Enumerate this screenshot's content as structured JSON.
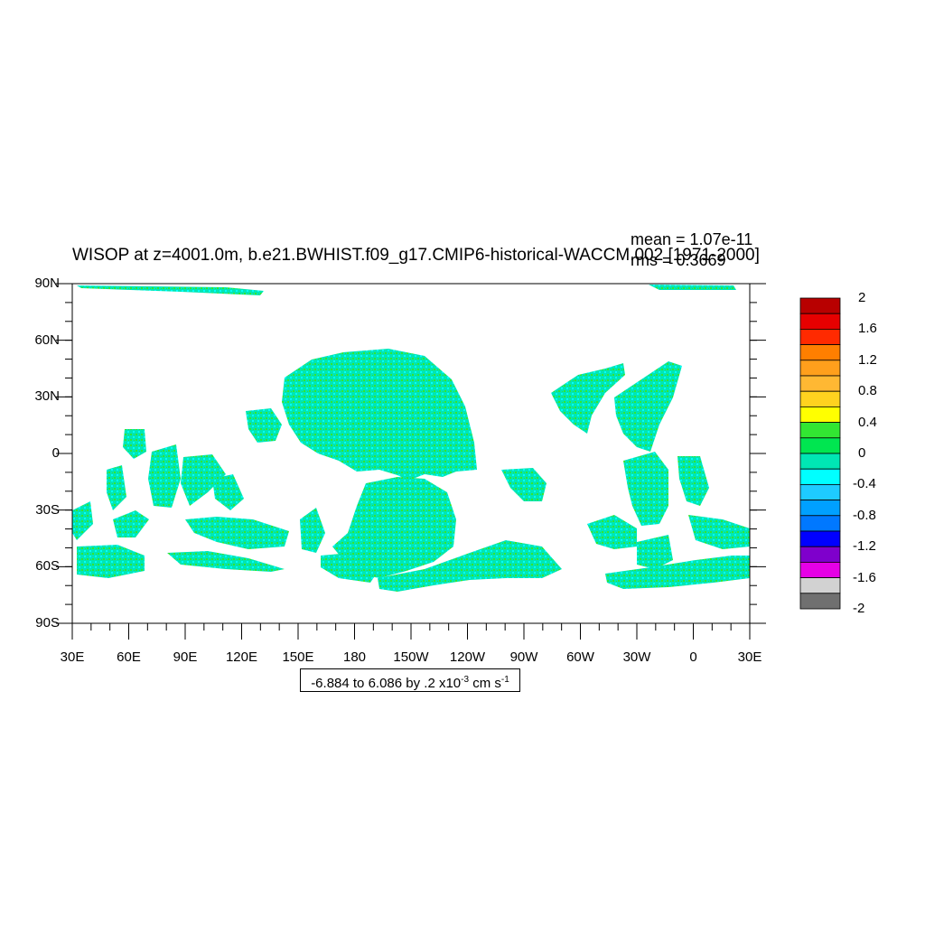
{
  "title": "WISOP at z=4001.0m, b.e21.BWHIST.f09_g17.CMIP6-historical-WACCM.002 [1971-2000]",
  "stats": {
    "mean": "mean = 1.07e-11",
    "rms": "rms = 0.3669"
  },
  "axes": {
    "lat_labels": [
      "90N",
      "60N",
      "30N",
      "0",
      "30S",
      "60S",
      "90S"
    ],
    "lon_labels": [
      "30E",
      "60E",
      "90E",
      "120E",
      "150E",
      "180",
      "150W",
      "120W",
      "90W",
      "60W",
      "30W",
      "0",
      "30E"
    ]
  },
  "colorbar": {
    "labels": [
      "2",
      "1.6",
      "1.2",
      "0.8",
      "0.4",
      "0",
      "-0.4",
      "-0.8",
      "-1.2",
      "-1.6",
      "-2"
    ],
    "colors": [
      "#b80000",
      "#e60000",
      "#ff2a00",
      "#ff7f00",
      "#ff9f1c",
      "#ffb833",
      "#ffd21f",
      "#ffff00",
      "#32e632",
      "#00e650",
      "#00e6b4",
      "#00ffff",
      "#1ecbff",
      "#00a0ff",
      "#0078ff",
      "#0000ff",
      "#7f00cc",
      "#e600e6",
      "#d2d2d2",
      "#707070"
    ]
  },
  "contour_info": {
    "prefix": "-6.884 to 6.086 by .2 x10",
    "exp1": "-3",
    "unit": " cm s",
    "exp2": "-1"
  },
  "colors": {
    "field_main": "#00e6b4",
    "field_pos": "#32e632",
    "field_cyan": "#00ffff"
  }
}
